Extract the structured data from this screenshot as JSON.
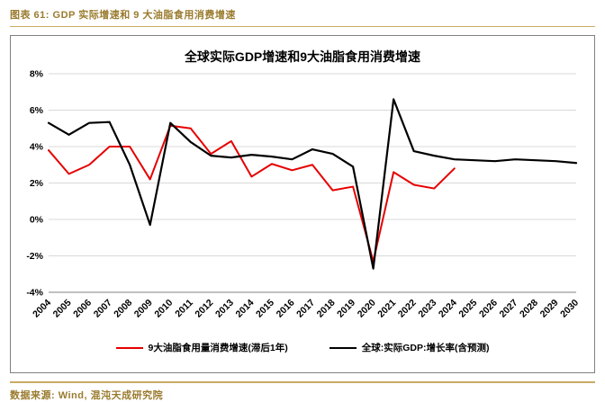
{
  "page": {
    "caption": "图表 61: GDP 实际增速和 9 大油脂食用消费增速",
    "source": "数据来源: Wind, 混沌天成研究院"
  },
  "theme": {
    "accent_text": "#9a7b2e",
    "rule_color": "#c9ac64",
    "grid_color": "#d9d9d9",
    "axis_color": "#808080"
  },
  "chart_data": {
    "type": "line",
    "title": "全球实际GDP增速和9大油脂食用消费增速",
    "x": [
      "2004",
      "2005",
      "2006",
      "2007",
      "2008",
      "2009",
      "2010",
      "2011",
      "2012",
      "2013",
      "2014",
      "2015",
      "2016",
      "2017",
      "2018",
      "2019",
      "2020",
      "2021",
      "2022",
      "2023",
      "2024",
      "2025",
      "2026",
      "2027",
      "2028",
      "2029",
      "2030"
    ],
    "xlabel": "",
    "ylabel": "",
    "ylim": [
      -4,
      8
    ],
    "yticks": [
      {
        "value": 8,
        "label": "8%"
      },
      {
        "value": 6,
        "label": "6%"
      },
      {
        "value": 4,
        "label": "4%"
      },
      {
        "value": 2,
        "label": "2%"
      },
      {
        "value": 0,
        "label": "0%"
      },
      {
        "value": -2,
        "label": "-2%"
      },
      {
        "value": -4,
        "label": "-4%"
      }
    ],
    "grid": true,
    "legend_position": "bottom",
    "series": [
      {
        "name": "9大油脂食用量消费增速(滞后1年)",
        "color": "#e60000",
        "values": [
          3.8,
          2.5,
          3.0,
          4.0,
          4.0,
          2.2,
          5.15,
          5.0,
          3.6,
          4.3,
          2.35,
          3.05,
          2.7,
          3.0,
          1.6,
          1.8,
          -2.3,
          2.6,
          1.9,
          1.7,
          2.8
        ]
      },
      {
        "name": "全球:实际GDP:增长率(含预测)",
        "color": "#000000",
        "values": [
          5.3,
          4.65,
          5.3,
          5.35,
          3.0,
          -0.3,
          5.3,
          4.25,
          3.5,
          3.4,
          3.55,
          3.45,
          3.3,
          3.85,
          3.6,
          2.9,
          -2.7,
          6.6,
          3.75,
          3.5,
          3.3,
          3.25,
          3.2,
          3.3,
          3.25,
          3.2,
          3.1
        ]
      }
    ]
  }
}
